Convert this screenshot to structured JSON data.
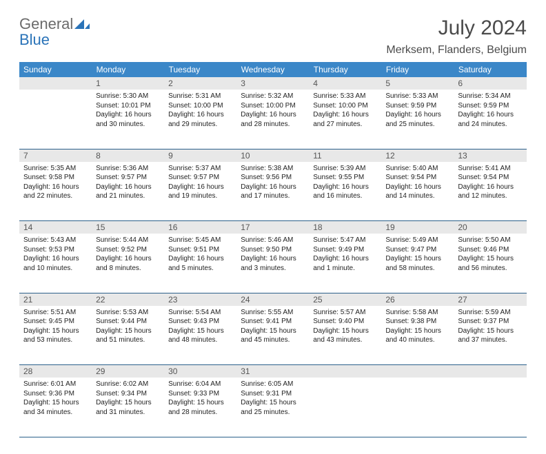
{
  "brand": {
    "part1": "General",
    "part2": "Blue"
  },
  "title": "July 2024",
  "location": "Merksem, Flanders, Belgium",
  "headers": [
    "Sunday",
    "Monday",
    "Tuesday",
    "Wednesday",
    "Thursday",
    "Friday",
    "Saturday"
  ],
  "colors": {
    "header_bg": "#3b87c8",
    "header_text": "#ffffff",
    "daynum_bg": "#e8e8e8",
    "border": "#2a5f8a",
    "logo_gray": "#6b6b6b",
    "logo_blue": "#2a73b8",
    "text": "#222222",
    "title_color": "#4a4a4a"
  },
  "weeks": [
    [
      null,
      {
        "n": "1",
        "sr": "Sunrise: 5:30 AM",
        "ss": "Sunset: 10:01 PM",
        "d1": "Daylight: 16 hours",
        "d2": "and 30 minutes."
      },
      {
        "n": "2",
        "sr": "Sunrise: 5:31 AM",
        "ss": "Sunset: 10:00 PM",
        "d1": "Daylight: 16 hours",
        "d2": "and 29 minutes."
      },
      {
        "n": "3",
        "sr": "Sunrise: 5:32 AM",
        "ss": "Sunset: 10:00 PM",
        "d1": "Daylight: 16 hours",
        "d2": "and 28 minutes."
      },
      {
        "n": "4",
        "sr": "Sunrise: 5:33 AM",
        "ss": "Sunset: 10:00 PM",
        "d1": "Daylight: 16 hours",
        "d2": "and 27 minutes."
      },
      {
        "n": "5",
        "sr": "Sunrise: 5:33 AM",
        "ss": "Sunset: 9:59 PM",
        "d1": "Daylight: 16 hours",
        "d2": "and 25 minutes."
      },
      {
        "n": "6",
        "sr": "Sunrise: 5:34 AM",
        "ss": "Sunset: 9:59 PM",
        "d1": "Daylight: 16 hours",
        "d2": "and 24 minutes."
      }
    ],
    [
      {
        "n": "7",
        "sr": "Sunrise: 5:35 AM",
        "ss": "Sunset: 9:58 PM",
        "d1": "Daylight: 16 hours",
        "d2": "and 22 minutes."
      },
      {
        "n": "8",
        "sr": "Sunrise: 5:36 AM",
        "ss": "Sunset: 9:57 PM",
        "d1": "Daylight: 16 hours",
        "d2": "and 21 minutes."
      },
      {
        "n": "9",
        "sr": "Sunrise: 5:37 AM",
        "ss": "Sunset: 9:57 PM",
        "d1": "Daylight: 16 hours",
        "d2": "and 19 minutes."
      },
      {
        "n": "10",
        "sr": "Sunrise: 5:38 AM",
        "ss": "Sunset: 9:56 PM",
        "d1": "Daylight: 16 hours",
        "d2": "and 17 minutes."
      },
      {
        "n": "11",
        "sr": "Sunrise: 5:39 AM",
        "ss": "Sunset: 9:55 PM",
        "d1": "Daylight: 16 hours",
        "d2": "and 16 minutes."
      },
      {
        "n": "12",
        "sr": "Sunrise: 5:40 AM",
        "ss": "Sunset: 9:54 PM",
        "d1": "Daylight: 16 hours",
        "d2": "and 14 minutes."
      },
      {
        "n": "13",
        "sr": "Sunrise: 5:41 AM",
        "ss": "Sunset: 9:54 PM",
        "d1": "Daylight: 16 hours",
        "d2": "and 12 minutes."
      }
    ],
    [
      {
        "n": "14",
        "sr": "Sunrise: 5:43 AM",
        "ss": "Sunset: 9:53 PM",
        "d1": "Daylight: 16 hours",
        "d2": "and 10 minutes."
      },
      {
        "n": "15",
        "sr": "Sunrise: 5:44 AM",
        "ss": "Sunset: 9:52 PM",
        "d1": "Daylight: 16 hours",
        "d2": "and 8 minutes."
      },
      {
        "n": "16",
        "sr": "Sunrise: 5:45 AM",
        "ss": "Sunset: 9:51 PM",
        "d1": "Daylight: 16 hours",
        "d2": "and 5 minutes."
      },
      {
        "n": "17",
        "sr": "Sunrise: 5:46 AM",
        "ss": "Sunset: 9:50 PM",
        "d1": "Daylight: 16 hours",
        "d2": "and 3 minutes."
      },
      {
        "n": "18",
        "sr": "Sunrise: 5:47 AM",
        "ss": "Sunset: 9:49 PM",
        "d1": "Daylight: 16 hours",
        "d2": "and 1 minute."
      },
      {
        "n": "19",
        "sr": "Sunrise: 5:49 AM",
        "ss": "Sunset: 9:47 PM",
        "d1": "Daylight: 15 hours",
        "d2": "and 58 minutes."
      },
      {
        "n": "20",
        "sr": "Sunrise: 5:50 AM",
        "ss": "Sunset: 9:46 PM",
        "d1": "Daylight: 15 hours",
        "d2": "and 56 minutes."
      }
    ],
    [
      {
        "n": "21",
        "sr": "Sunrise: 5:51 AM",
        "ss": "Sunset: 9:45 PM",
        "d1": "Daylight: 15 hours",
        "d2": "and 53 minutes."
      },
      {
        "n": "22",
        "sr": "Sunrise: 5:53 AM",
        "ss": "Sunset: 9:44 PM",
        "d1": "Daylight: 15 hours",
        "d2": "and 51 minutes."
      },
      {
        "n": "23",
        "sr": "Sunrise: 5:54 AM",
        "ss": "Sunset: 9:43 PM",
        "d1": "Daylight: 15 hours",
        "d2": "and 48 minutes."
      },
      {
        "n": "24",
        "sr": "Sunrise: 5:55 AM",
        "ss": "Sunset: 9:41 PM",
        "d1": "Daylight: 15 hours",
        "d2": "and 45 minutes."
      },
      {
        "n": "25",
        "sr": "Sunrise: 5:57 AM",
        "ss": "Sunset: 9:40 PM",
        "d1": "Daylight: 15 hours",
        "d2": "and 43 minutes."
      },
      {
        "n": "26",
        "sr": "Sunrise: 5:58 AM",
        "ss": "Sunset: 9:38 PM",
        "d1": "Daylight: 15 hours",
        "d2": "and 40 minutes."
      },
      {
        "n": "27",
        "sr": "Sunrise: 5:59 AM",
        "ss": "Sunset: 9:37 PM",
        "d1": "Daylight: 15 hours",
        "d2": "and 37 minutes."
      }
    ],
    [
      {
        "n": "28",
        "sr": "Sunrise: 6:01 AM",
        "ss": "Sunset: 9:36 PM",
        "d1": "Daylight: 15 hours",
        "d2": "and 34 minutes."
      },
      {
        "n": "29",
        "sr": "Sunrise: 6:02 AM",
        "ss": "Sunset: 9:34 PM",
        "d1": "Daylight: 15 hours",
        "d2": "and 31 minutes."
      },
      {
        "n": "30",
        "sr": "Sunrise: 6:04 AM",
        "ss": "Sunset: 9:33 PM",
        "d1": "Daylight: 15 hours",
        "d2": "and 28 minutes."
      },
      {
        "n": "31",
        "sr": "Sunrise: 6:05 AM",
        "ss": "Sunset: 9:31 PM",
        "d1": "Daylight: 15 hours",
        "d2": "and 25 minutes."
      },
      null,
      null,
      null
    ]
  ]
}
